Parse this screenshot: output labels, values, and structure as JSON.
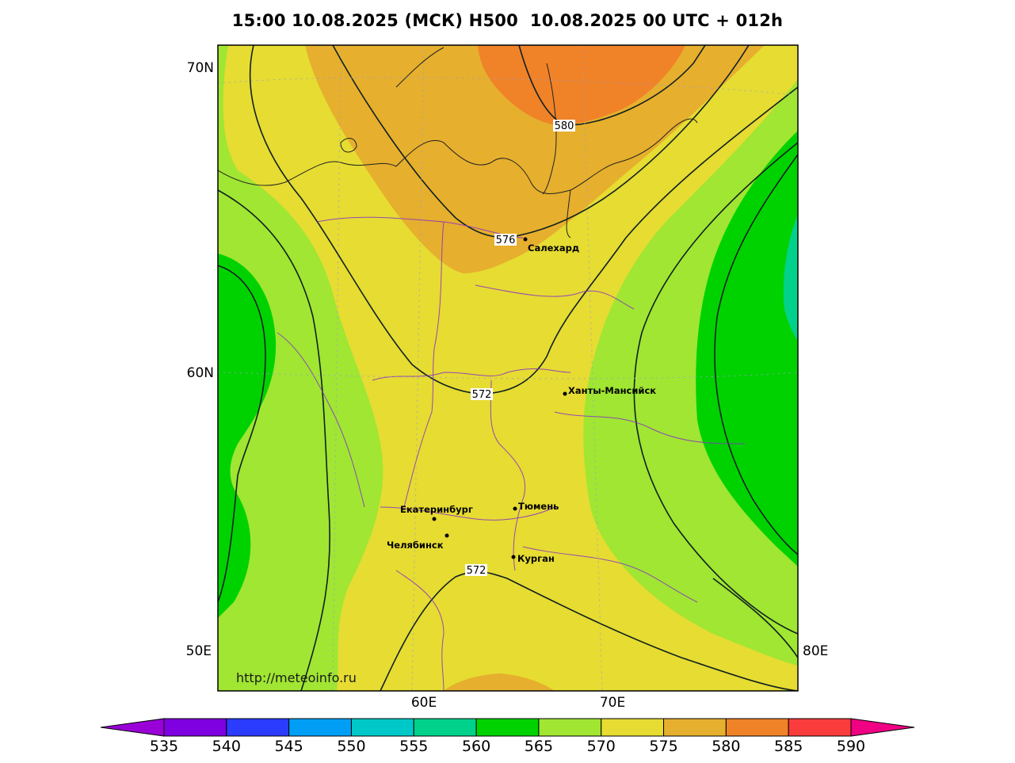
{
  "title": "15:00 10.08.2025 (МСК) H500  10.08.2025 00 UTC + 012h",
  "watermark": "http://meteoinfo.ru",
  "lat_labels": [
    "70N",
    "60N",
    "50E"
  ],
  "lon_labels": [
    "60E",
    "70E",
    "80E"
  ],
  "cities": [
    {
      "name": "Салехард"
    },
    {
      "name": "Ханты-Мансийск"
    },
    {
      "name": "Екатеринбург"
    },
    {
      "name": "Тюмень"
    },
    {
      "name": "Челябинск"
    },
    {
      "name": "Курган"
    }
  ],
  "contour_labels": [
    "580",
    "576",
    "572",
    "572"
  ],
  "colorbar": {
    "ticks": [
      "535",
      "540",
      "545",
      "550",
      "555",
      "560",
      "565",
      "570",
      "575",
      "580",
      "585",
      "590"
    ],
    "colors": [
      "#9a00d8",
      "#7f00e0",
      "#2b3cff",
      "#009ff5",
      "#00c8c8",
      "#00d28c",
      "#00d200",
      "#a0e632",
      "#e6dc32",
      "#e6af2d",
      "#f08228",
      "#fa3c3c",
      "#f00082"
    ]
  },
  "colors": {
    "band_575_580": "#e6af2d",
    "band_580_585": "#f08228",
    "band_570_575": "#e6dc32",
    "band_565_570": "#a0e632",
    "band_560_565": "#00d200",
    "band_555_560": "#00d28c",
    "contour_line": "#102020",
    "admin_border": "#8a2ec8"
  }
}
